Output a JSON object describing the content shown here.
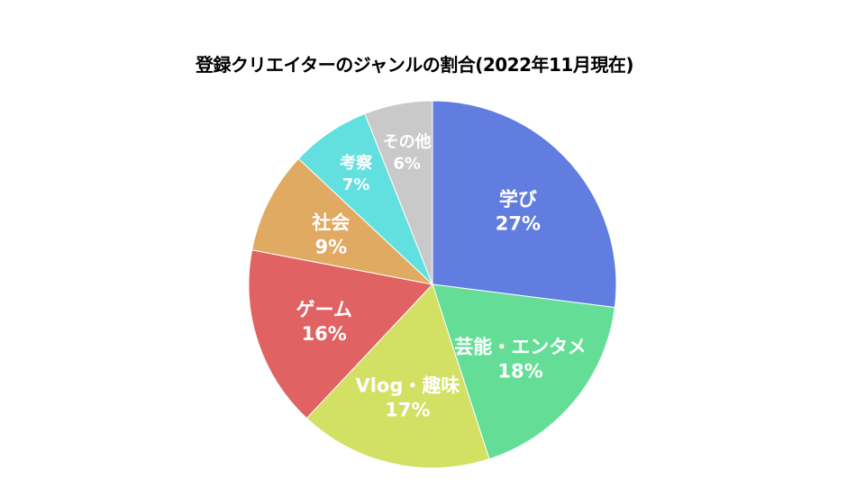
{
  "chart_data": {
    "type": "pie",
    "title": "登録クリエイターのジャンルの割合(2022年11月現在)",
    "slices": [
      {
        "label": "学び",
        "value": 27,
        "display": "27%",
        "color": "#627de0"
      },
      {
        "label": "芸能・エンタメ",
        "value": 18,
        "display": "18%",
        "color": "#64de96"
      },
      {
        "label": "Vlog・趣味",
        "value": 17,
        "display": "17%",
        "color": "#d2e064"
      },
      {
        "label": "ゲーム",
        "value": 16,
        "display": "16%",
        "color": "#e06262"
      },
      {
        "label": "社会",
        "value": 9,
        "display": "9%",
        "color": "#e0aa62"
      },
      {
        "label": "考察",
        "value": 7,
        "display": "7%",
        "color": "#62e0e0"
      },
      {
        "label": "その他",
        "value": 6,
        "display": "6%",
        "color": "#c9c9c9"
      }
    ]
  }
}
